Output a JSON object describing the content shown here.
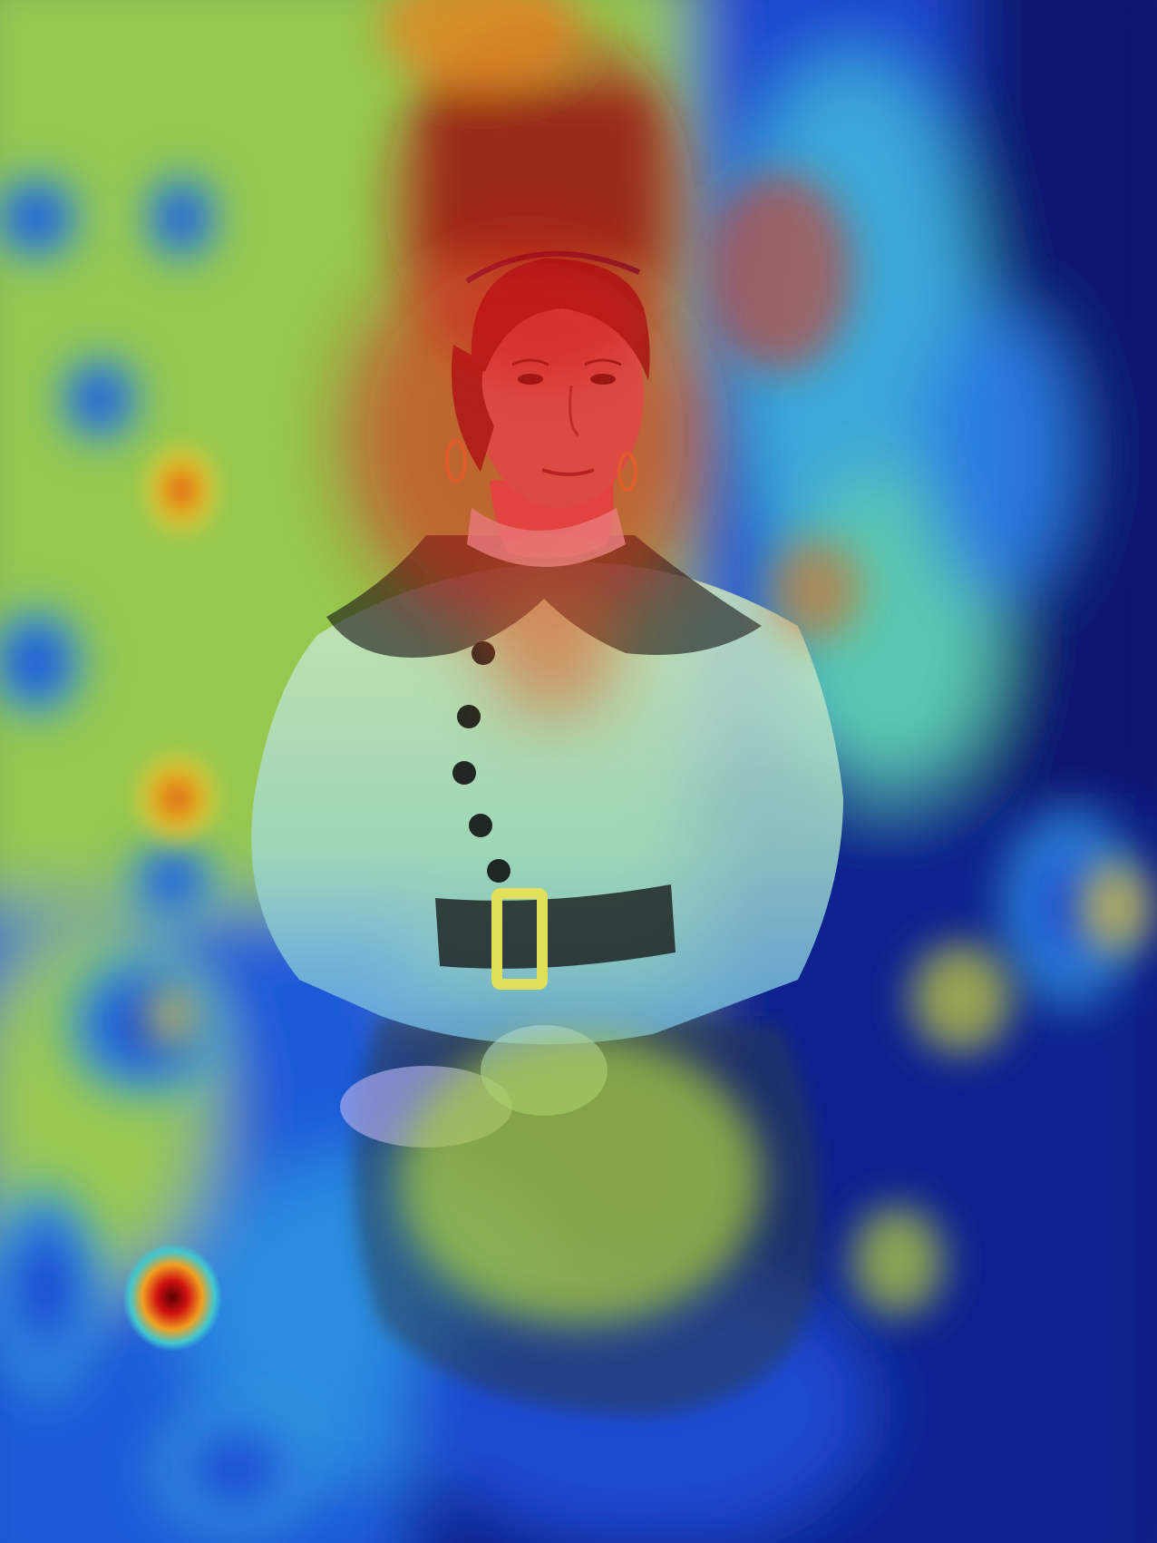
{
  "image": {
    "kind": "heatmap-overlay-portrait",
    "subject": "seated-woman-portrait",
    "palette": {
      "heat_red": "#c81414",
      "heat_darkred": "#6e0a0a",
      "heat_orange": "#f07a14",
      "heat_yellow": "#e6e63c",
      "heat_green": "#8ccd5a",
      "heat_cyan": "#46c8d2",
      "heat_blue": "#1e50dc",
      "heat_navy": "#0a1a78",
      "dress_white": "#dfe6ee",
      "dress_black": "#141414",
      "skin": "#d99080",
      "hair": "#6a2e1e",
      "buckle": "#e0e05a"
    }
  }
}
